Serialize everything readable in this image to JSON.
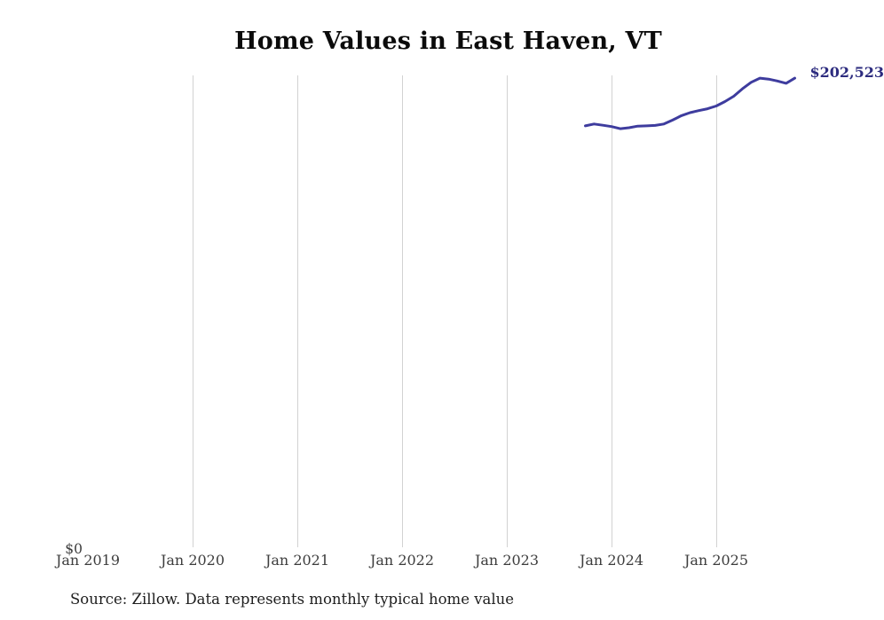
{
  "page": {
    "title": "Home Values in East Haven, VT",
    "source_note": "Source: Zillow. Data represents monthly typical home value"
  },
  "chart_data": {
    "type": "line",
    "title": "Home Values in East Haven, VT",
    "ylabel": "",
    "xlabel": "",
    "ylim": [
      0,
      203700
    ],
    "grid": "vertical-only",
    "gridline_color": "#d2d2d2",
    "line_color": "#3e3c9e",
    "end_label": "$202,523",
    "end_label_color": "#2d2c7f",
    "y_tick_labels": [
      "$0"
    ],
    "x_ticks": [
      {
        "label": "Jan 2019",
        "year": 2019,
        "gridline": false
      },
      {
        "label": "Jan 2020",
        "year": 2020,
        "gridline": true
      },
      {
        "label": "Jan 2021",
        "year": 2021,
        "gridline": true
      },
      {
        "label": "Jan 2022",
        "year": 2022,
        "gridline": true
      },
      {
        "label": "Jan 2023",
        "year": 2023,
        "gridline": true
      },
      {
        "label": "Jan 2024",
        "year": 2024,
        "gridline": true
      },
      {
        "label": "Jan 2025",
        "year": 2025,
        "gridline": true
      }
    ],
    "series": [
      {
        "name": "Monthly typical home value",
        "x": [
          "2023-10",
          "2023-11",
          "2023-12",
          "2024-01",
          "2024-02",
          "2024-03",
          "2024-04",
          "2024-05",
          "2024-06",
          "2024-07",
          "2024-08",
          "2024-09",
          "2024-10",
          "2024-11",
          "2024-12",
          "2025-01",
          "2025-02",
          "2025-03",
          "2025-04",
          "2025-05",
          "2025-06",
          "2025-07",
          "2025-08",
          "2025-09",
          "2025-10"
        ],
        "values": [
          181900,
          182700,
          182200,
          181600,
          180700,
          181100,
          181800,
          181900,
          182100,
          182700,
          184400,
          186300,
          187600,
          188500,
          189300,
          190500,
          192400,
          194700,
          197900,
          200700,
          202500,
          202100,
          201300,
          200300,
          202523
        ]
      }
    ],
    "source": "Source: Zillow. Data represents monthly typical home value"
  }
}
